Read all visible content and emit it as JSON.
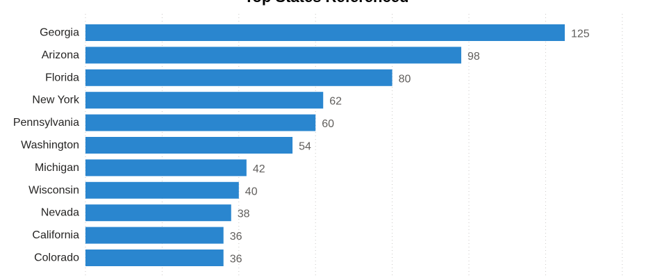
{
  "chart_data": {
    "type": "bar",
    "orientation": "horizontal",
    "title": "Top States Referenced",
    "categories": [
      "Georgia",
      "Arizona",
      "Florida",
      "New York",
      "Pennsylvania",
      "Washington",
      "Michigan",
      "Wisconsin",
      "Nevada",
      "California",
      "Colorado"
    ],
    "values": [
      125,
      98,
      80,
      62,
      60,
      54,
      42,
      40,
      38,
      36,
      36
    ],
    "xlim": [
      0,
      140
    ],
    "grid": true,
    "data_labels": true,
    "bar_color": "#2A86CF",
    "grid_color": "#C8C6C4"
  }
}
